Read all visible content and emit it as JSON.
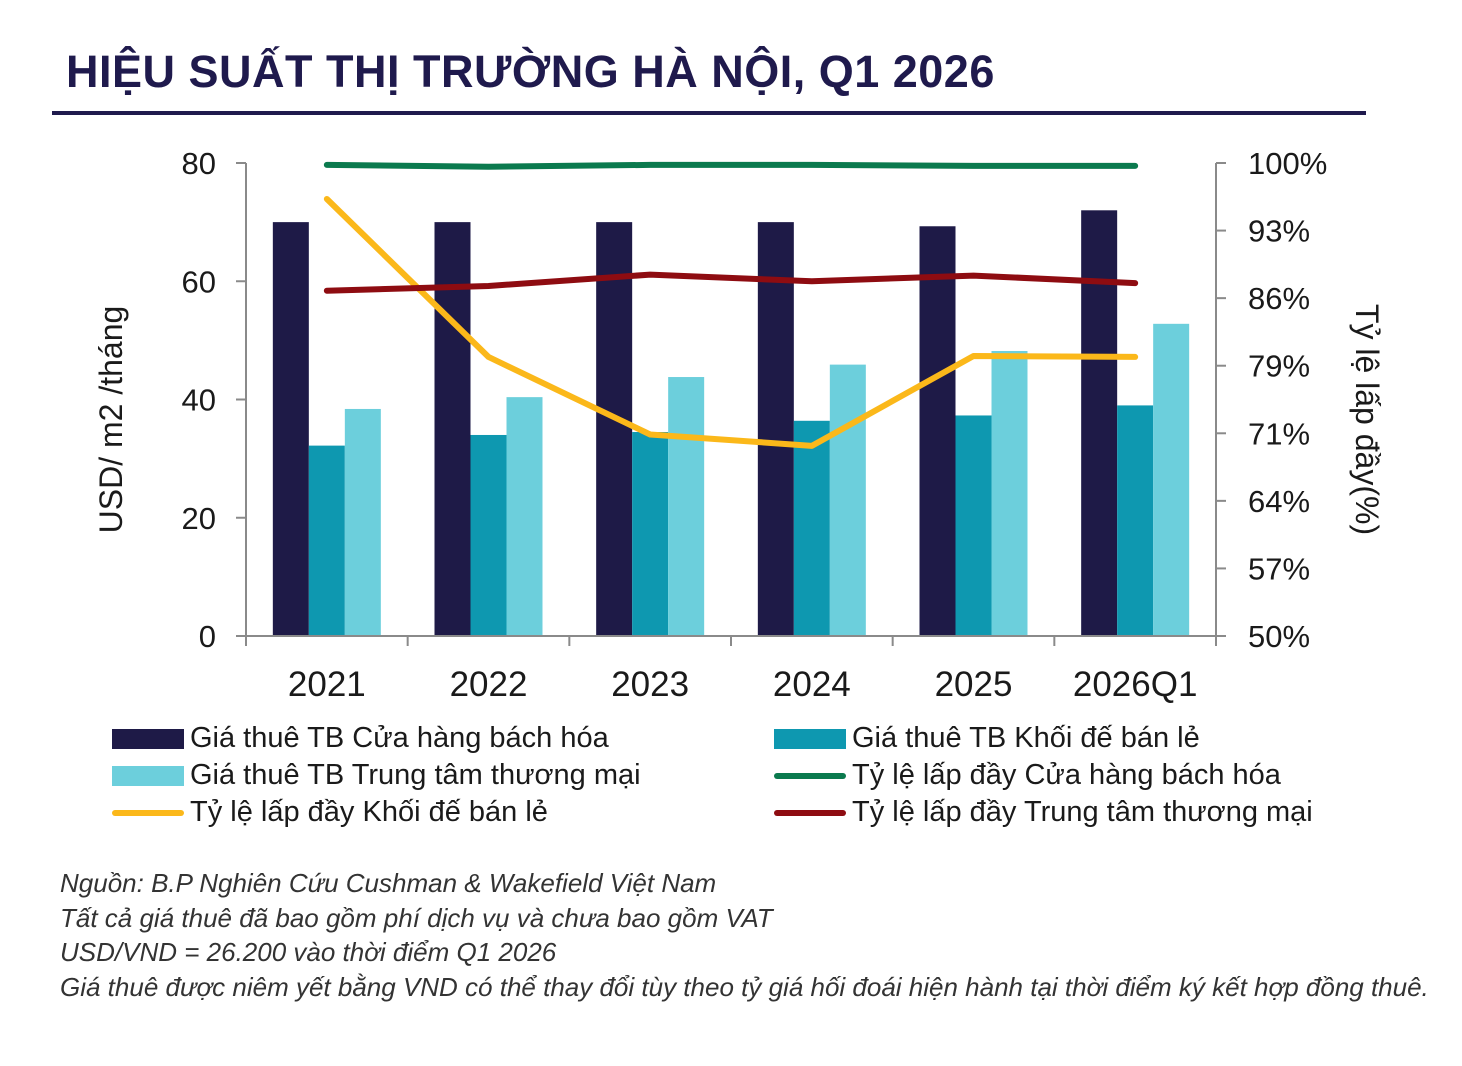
{
  "title": "HIỆU SUẤT THỊ TRƯỜNG HÀ NỘI, Q1 2026",
  "chart_data": {
    "type": "bar",
    "categories": [
      "2021",
      "2022",
      "2023",
      "2024",
      "2025",
      "2026Q1"
    ],
    "ylabel_left": "USD/ m2 /tháng",
    "ylabel_right": "Tỷ lệ lấp đầy(%)",
    "ylim_left": [
      0,
      80
    ],
    "yticks_left": [
      "0",
      "20",
      "40",
      "60",
      "80"
    ],
    "ylim_right": [
      50,
      100
    ],
    "yticks_right": [
      "50%",
      "57%",
      "64%",
      "71%",
      "79%",
      "86%",
      "93%",
      "100%"
    ],
    "bar_series": [
      {
        "name": "Giá thuê TB Cửa hàng bách hóa",
        "color": "#1e1a47",
        "values": [
          70,
          70,
          70,
          70,
          69.3,
          72
        ]
      },
      {
        "name": "Giá thuê TB Khối đế bán lẻ",
        "color": "#0e98b0",
        "values": [
          32.2,
          34,
          34.5,
          36.4,
          37.3,
          39
        ]
      },
      {
        "name": "Giá thuê TB Trung tâm thương mại",
        "color": "#6ccfdc",
        "values": [
          38.4,
          40.4,
          43.8,
          45.9,
          48.2,
          52.8
        ]
      }
    ],
    "line_series": [
      {
        "name": "Tỷ lệ lấp đầy Cửa hàng bách hóa",
        "color": "#0b7a4e",
        "values": [
          99.8,
          99.6,
          99.8,
          99.8,
          99.7,
          99.7
        ]
      },
      {
        "name": "Tỷ lệ lấp đầy Khối đế bán lẻ",
        "color": "#fbb81a",
        "values": [
          96.2,
          79.5,
          71.3,
          70.1,
          79.6,
          79.5
        ]
      },
      {
        "name": "Tỷ lệ lấp đầy Trung tâm thương mại",
        "color": "#8e0c11",
        "values": [
          86.5,
          87,
          88.2,
          87.5,
          88.1,
          87.3
        ]
      }
    ],
    "legend_placement": "bottom",
    "grid": false
  },
  "notes": [
    "Nguồn: B.P Nghiên Cứu Cushman & Wakefield Việt Nam",
    "Tất cả giá thuê đã bao gồm phí dịch vụ và chưa bao gồm VAT",
    "USD/VND = 26.200 vào thời điểm Q1 2026",
    "Giá thuê được niêm yết bằng VND có thể thay đổi tùy theo tỷ giá hối đoái hiện hành tại thời điểm ký kết hợp đồng thuê."
  ]
}
